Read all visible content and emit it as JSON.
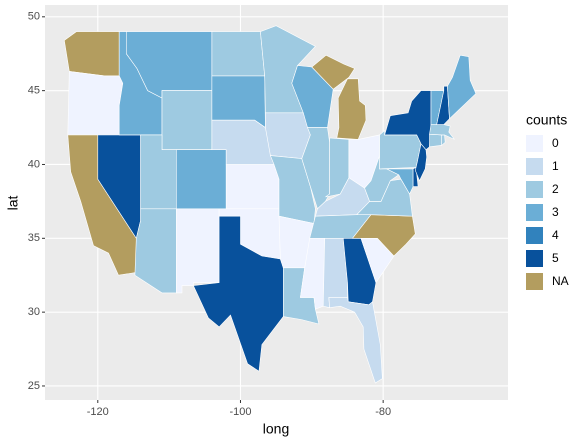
{
  "chart_data": {
    "type": "choropleth",
    "xlabel": "long",
    "ylabel": "lat",
    "xlim": [
      -127.4,
      -62.5
    ],
    "ylim": [
      24.05,
      50.8
    ],
    "xticks": [
      -120,
      -100,
      -80
    ],
    "yticks": [
      25,
      30,
      35,
      40,
      45,
      50
    ],
    "grid": true,
    "values": [
      null,
      0,
      null,
      5,
      3,
      3,
      2,
      2,
      2,
      3,
      0,
      2,
      3,
      1,
      0,
      0,
      5,
      2,
      1,
      2,
      0,
      2,
      3,
      2,
      null,
      2,
      0,
      1,
      2,
      0,
      1,
      5,
      1,
      0,
      null,
      2,
      2,
      3,
      5,
      2,
      5,
      5,
      2,
      2,
      2,
      3,
      5,
      3
    ],
    "legend": {
      "title": "counts",
      "levels": [
        0,
        1,
        2,
        3,
        4,
        5
      ],
      "colors": [
        "#eff3ff",
        "#c6dbef",
        "#9ecae1",
        "#6baed6",
        "#3182bd",
        "#08519c"
      ],
      "na_label": "NA",
      "na_color": "#b39d5f"
    }
  }
}
